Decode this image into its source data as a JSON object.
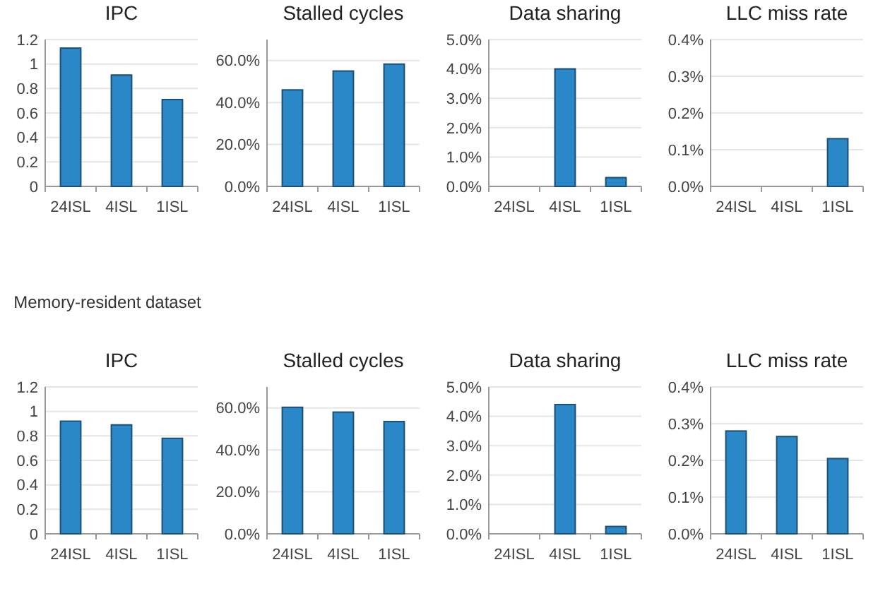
{
  "chart_data": [
    {
      "type": "bar",
      "title": "IPC",
      "categories": [
        "24ISL",
        "4ISL",
        "1ISL"
      ],
      "values": [
        1.13,
        0.91,
        0.71
      ],
      "color": "#2a87c8",
      "ylim": [
        0,
        1.2
      ],
      "yticks": [
        0,
        0.2,
        0.4,
        0.6,
        0.8,
        1,
        1.2
      ],
      "grid": "y"
    },
    {
      "type": "bar",
      "title": "Stalled cycles",
      "categories": [
        "24ISL",
        "4ISL",
        "1ISL"
      ],
      "values": [
        46,
        55,
        58.3
      ],
      "color": "#2a87c8",
      "ylim": [
        0,
        70
      ],
      "yticks": [
        {
          "value": 0,
          "label": "0.0%"
        },
        {
          "value": 20,
          "label": "20.0%"
        },
        {
          "value": 40,
          "label": "40.0%"
        },
        {
          "value": 60,
          "label": "60.0%"
        }
      ],
      "grid": "y"
    },
    {
      "type": "bar",
      "title": "Data sharing",
      "categories": [
        "24ISL",
        "4ISL",
        "1ISL"
      ],
      "values": [
        0,
        4.0,
        0.3
      ],
      "color": "#2a87c8",
      "ylim": [
        0,
        5
      ],
      "yticks": [
        {
          "value": 0,
          "label": "0.0%"
        },
        {
          "value": 1,
          "label": "1.0%"
        },
        {
          "value": 2,
          "label": "2.0%"
        },
        {
          "value": 3,
          "label": "3.0%"
        },
        {
          "value": 4,
          "label": "4.0%"
        },
        {
          "value": 5,
          "label": "5.0%"
        }
      ],
      "grid": "y"
    },
    {
      "type": "bar",
      "title": "LLC miss rate",
      "categories": [
        "24ISL",
        "4ISL",
        "1ISL"
      ],
      "values": [
        0,
        0,
        0.13
      ],
      "color": "#2a87c8",
      "ylim": [
        0,
        0.4
      ],
      "yticks": [
        {
          "value": 0,
          "label": "0.0%"
        },
        {
          "value": 0.1,
          "label": "0.1%"
        },
        {
          "value": 0.2,
          "label": "0.2%"
        },
        {
          "value": 0.3,
          "label": "0.3%"
        },
        {
          "value": 0.4,
          "label": "0.4%"
        }
      ],
      "grid": "y"
    },
    {
      "type": "bar",
      "title": "IPC",
      "subtitle": "Memory-resident dataset",
      "categories": [
        "24ISL",
        "4ISL",
        "1ISL"
      ],
      "values": [
        0.92,
        0.89,
        0.78
      ],
      "color": "#2a87c8",
      "ylim": [
        0,
        1.2
      ],
      "yticks": [
        0,
        0.2,
        0.4,
        0.6,
        0.8,
        1,
        1.2
      ],
      "grid": "y"
    },
    {
      "type": "bar",
      "title": "Stalled cycles",
      "categories": [
        "24ISL",
        "4ISL",
        "1ISL"
      ],
      "values": [
        60.3,
        58,
        53.5
      ],
      "color": "#2a87c8",
      "ylim": [
        0,
        70
      ],
      "yticks": [
        {
          "value": 0,
          "label": "0.0%"
        },
        {
          "value": 20,
          "label": "20.0%"
        },
        {
          "value": 40,
          "label": "40.0%"
        },
        {
          "value": 60,
          "label": "60.0%"
        }
      ],
      "grid": "y"
    },
    {
      "type": "bar",
      "title": "Data sharing",
      "categories": [
        "24ISL",
        "4ISL",
        "1ISL"
      ],
      "values": [
        0,
        4.4,
        0.25
      ],
      "color": "#2a87c8",
      "ylim": [
        0,
        5
      ],
      "yticks": [
        {
          "value": 0,
          "label": "0.0%"
        },
        {
          "value": 1,
          "label": "1.0%"
        },
        {
          "value": 2,
          "label": "2.0%"
        },
        {
          "value": 3,
          "label": "3.0%"
        },
        {
          "value": 4,
          "label": "4.0%"
        },
        {
          "value": 5,
          "label": "5.0%"
        }
      ],
      "grid": "y"
    },
    {
      "type": "bar",
      "title": "LLC miss rate",
      "categories": [
        "24ISL",
        "4ISL",
        "1ISL"
      ],
      "values": [
        0.28,
        0.265,
        0.205
      ],
      "color": "#2a87c8",
      "ylim": [
        0,
        0.4
      ],
      "yticks": [
        {
          "value": 0,
          "label": "0.0%"
        },
        {
          "value": 0.1,
          "label": "0.1%"
        },
        {
          "value": 0.2,
          "label": "0.2%"
        },
        {
          "value": 0.3,
          "label": "0.3%"
        },
        {
          "value": 0.4,
          "label": "0.4%"
        }
      ],
      "grid": "y"
    }
  ]
}
